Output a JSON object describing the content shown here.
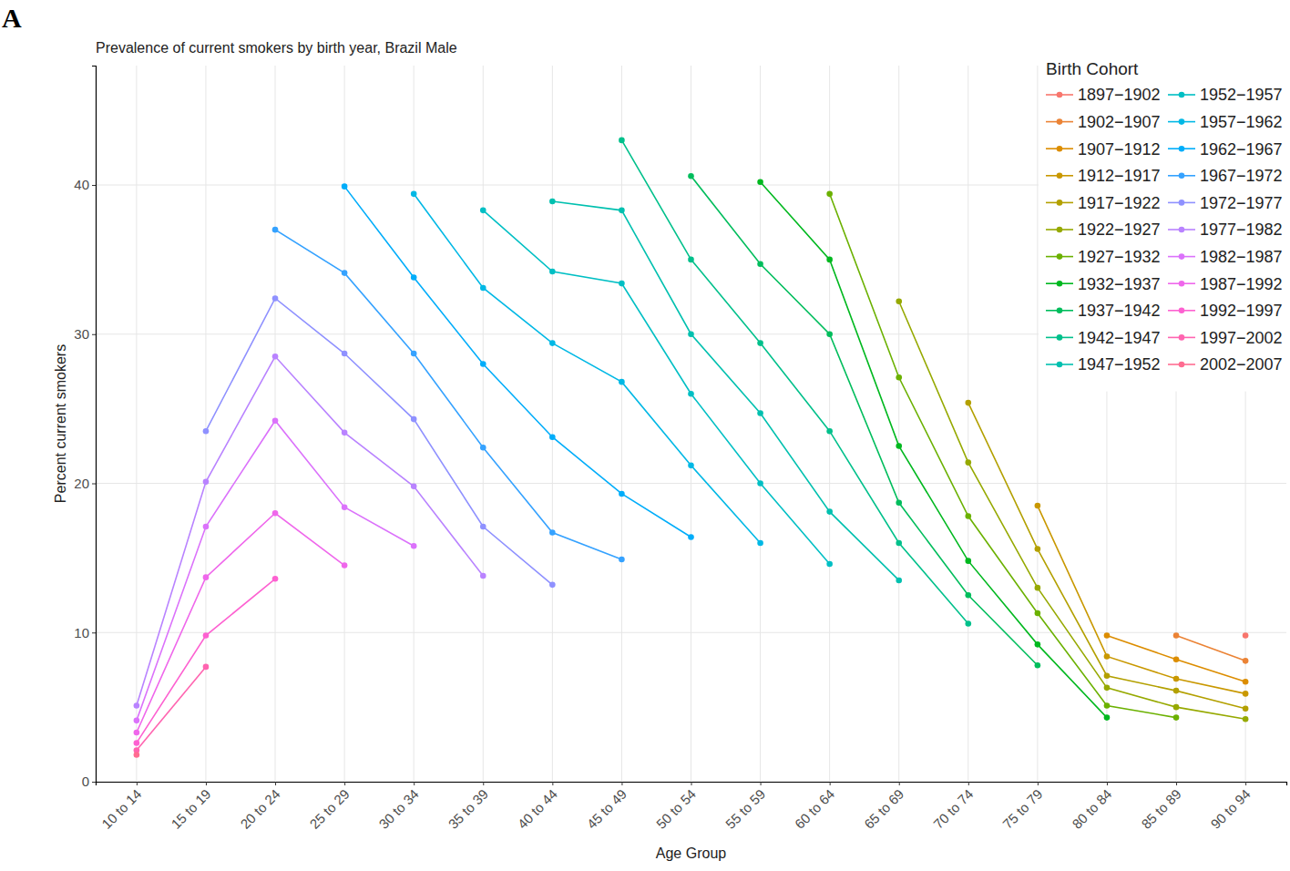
{
  "chart_data": {
    "type": "line",
    "panel_label": "A",
    "title": "Prevalence of current smokers by birth year, Brazil Male",
    "x_label": "Age Group",
    "y_label": "Percent current smokers",
    "categories": [
      "10 to 14",
      "15 to 19",
      "20 to 24",
      "25 to 29",
      "30 to 34",
      "35 to 39",
      "40 to 44",
      "45 to 49",
      "50 to 54",
      "55 to 59",
      "60 to 64",
      "65 to 69",
      "70 to 74",
      "75 to 79",
      "80 to 84",
      "85 to 89",
      "90 to 94"
    ],
    "ylim": [
      0,
      48
    ],
    "yticks": [
      0,
      10,
      20,
      30,
      40
    ],
    "grid": true,
    "legend": "top-right",
    "legend_title": "Birth Cohort",
    "marker": "circle",
    "series": [
      {
        "name": "1897−1902",
        "color": "#F8766D",
        "values": [
          null,
          null,
          null,
          null,
          null,
          null,
          null,
          null,
          null,
          null,
          null,
          null,
          null,
          null,
          null,
          null,
          9.8
        ]
      },
      {
        "name": "1902−1907",
        "color": "#EB8335",
        "values": [
          null,
          null,
          null,
          null,
          null,
          null,
          null,
          null,
          null,
          null,
          null,
          null,
          null,
          null,
          null,
          9.8,
          8.1
        ]
      },
      {
        "name": "1907−1912",
        "color": "#DC8D00",
        "values": [
          null,
          null,
          null,
          null,
          null,
          null,
          null,
          null,
          null,
          null,
          null,
          null,
          null,
          null,
          9.8,
          8.2,
          6.7
        ]
      },
      {
        "name": "1912−1917",
        "color": "#C99800",
        "values": [
          null,
          null,
          null,
          null,
          null,
          null,
          null,
          null,
          null,
          null,
          null,
          null,
          null,
          18.5,
          8.4,
          6.9,
          5.9
        ]
      },
      {
        "name": "1917−1922",
        "color": "#B3A000",
        "values": [
          null,
          null,
          null,
          null,
          null,
          null,
          null,
          null,
          null,
          null,
          null,
          null,
          25.4,
          15.6,
          7.1,
          6.1,
          4.9
        ]
      },
      {
        "name": "1922−1927",
        "color": "#96A900",
        "values": [
          null,
          null,
          null,
          null,
          null,
          null,
          null,
          null,
          null,
          null,
          null,
          32.2,
          21.4,
          13.0,
          6.3,
          5.0,
          4.2
        ]
      },
      {
        "name": "1927−1932",
        "color": "#6BB100",
        "values": [
          null,
          null,
          null,
          null,
          null,
          null,
          null,
          null,
          null,
          null,
          39.4,
          27.1,
          17.8,
          11.3,
          5.1,
          4.3,
          null
        ]
      },
      {
        "name": "1932−1937",
        "color": "#00B81F",
        "values": [
          null,
          null,
          null,
          null,
          null,
          null,
          null,
          null,
          null,
          40.2,
          35.0,
          22.5,
          14.8,
          9.2,
          4.3,
          null,
          null
        ]
      },
      {
        "name": "1937−1942",
        "color": "#00BD5C",
        "values": [
          null,
          null,
          null,
          null,
          null,
          null,
          null,
          null,
          40.6,
          34.7,
          30.0,
          18.7,
          12.5,
          7.8,
          null,
          null,
          null
        ]
      },
      {
        "name": "1942−1947",
        "color": "#00C08B",
        "values": [
          null,
          null,
          null,
          null,
          null,
          null,
          null,
          43.0,
          35.0,
          29.4,
          23.5,
          16.0,
          10.6,
          null,
          null,
          null,
          null
        ]
      },
      {
        "name": "1947−1952",
        "color": "#00C0AF",
        "values": [
          null,
          null,
          null,
          null,
          null,
          null,
          38.9,
          38.3,
          30.0,
          24.7,
          18.1,
          13.5,
          null,
          null,
          null,
          null,
          null
        ]
      },
      {
        "name": "1952−1957",
        "color": "#00BFC4",
        "values": [
          null,
          null,
          null,
          null,
          null,
          38.3,
          34.2,
          33.4,
          26.0,
          20.0,
          14.6,
          null,
          null,
          null,
          null,
          null,
          null
        ]
      },
      {
        "name": "1957−1962",
        "color": "#00B8E5",
        "values": [
          null,
          null,
          null,
          null,
          39.4,
          33.1,
          29.4,
          26.8,
          21.2,
          16.0,
          null,
          null,
          null,
          null,
          null,
          null,
          null
        ]
      },
      {
        "name": "1962−1967",
        "color": "#00ADFA",
        "values": [
          null,
          null,
          null,
          39.9,
          33.8,
          28.0,
          23.1,
          19.3,
          16.4,
          null,
          null,
          null,
          null,
          null,
          null,
          null,
          null
        ]
      },
      {
        "name": "1967−1972",
        "color": "#35A2FF",
        "values": [
          null,
          null,
          37.0,
          34.1,
          28.7,
          22.4,
          16.7,
          14.9,
          null,
          null,
          null,
          null,
          null,
          null,
          null,
          null,
          null
        ]
      },
      {
        "name": "1972−1977",
        "color": "#8F91FF",
        "values": [
          null,
          23.5,
          32.4,
          28.7,
          24.3,
          17.1,
          13.2,
          null,
          null,
          null,
          null,
          null,
          null,
          null,
          null,
          null,
          null
        ]
      },
      {
        "name": "1977−1982",
        "color": "#B983FF",
        "values": [
          5.1,
          20.1,
          28.5,
          23.4,
          19.8,
          13.8,
          null,
          null,
          null,
          null,
          null,
          null,
          null,
          null,
          null,
          null,
          null
        ]
      },
      {
        "name": "1982−1987",
        "color": "#DB72FB",
        "values": [
          4.1,
          17.1,
          24.2,
          18.4,
          15.8,
          null,
          null,
          null,
          null,
          null,
          null,
          null,
          null,
          null,
          null,
          null,
          null
        ]
      },
      {
        "name": "1987−1992",
        "color": "#EF67EB",
        "values": [
          3.3,
          13.7,
          18.0,
          14.5,
          null,
          null,
          null,
          null,
          null,
          null,
          null,
          null,
          null,
          null,
          null,
          null,
          null
        ]
      },
      {
        "name": "1992−1997",
        "color": "#FD61D1",
        "values": [
          2.6,
          9.8,
          13.6,
          null,
          null,
          null,
          null,
          null,
          null,
          null,
          null,
          null,
          null,
          null,
          null,
          null,
          null
        ]
      },
      {
        "name": "1997−2002",
        "color": "#FF64B0",
        "values": [
          2.1,
          7.7,
          null,
          null,
          null,
          null,
          null,
          null,
          null,
          null,
          null,
          null,
          null,
          null,
          null,
          null,
          null
        ]
      },
      {
        "name": "2002−2007",
        "color": "#FF6C91",
        "values": [
          1.8,
          null,
          null,
          null,
          null,
          null,
          null,
          null,
          null,
          null,
          null,
          null,
          null,
          null,
          null,
          null,
          null
        ]
      }
    ]
  }
}
